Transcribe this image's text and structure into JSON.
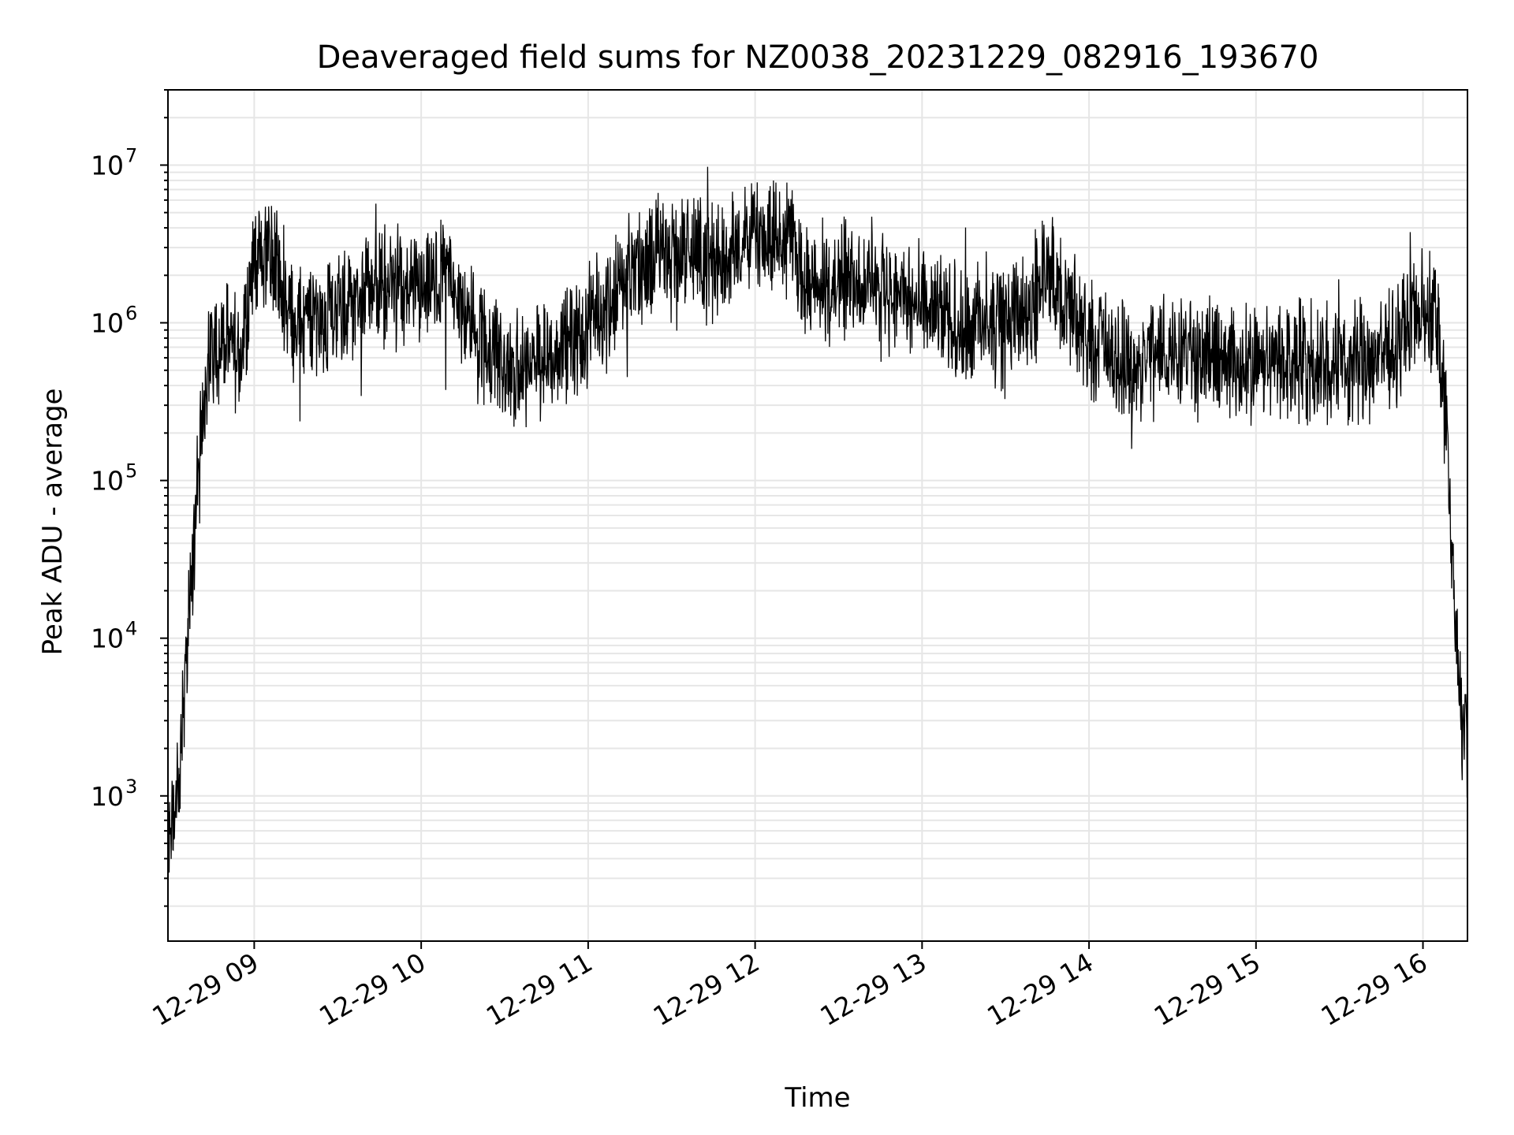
{
  "chart_data": {
    "type": "line",
    "title": "Deaveraged field sums for NZ0038_20231229_082916_193670",
    "xlabel": "Time",
    "ylabel": "Peak ADU - average",
    "yscale": "log",
    "ylim": [
      120,
      30000000
    ],
    "xlim": [
      "2023-12-29 08:29",
      "2023-12-29 16:16"
    ],
    "grid": true,
    "line_color": "#000000",
    "grid_color": "#e6e6e6",
    "x_ticks": [
      "12-29 09",
      "12-29 10",
      "12-29 11",
      "12-29 12",
      "12-29 13",
      "12-29 14",
      "12-29 15",
      "12-29 16"
    ],
    "y_ticks": [
      {
        "base": "10",
        "exp": "3"
      },
      {
        "base": "10",
        "exp": "4"
      },
      {
        "base": "10",
        "exp": "5"
      },
      {
        "base": "10",
        "exp": "6"
      },
      {
        "base": "10",
        "exp": "7"
      }
    ],
    "series": [
      {
        "x": [
          "2023-12-29 08:29",
          "2023-12-29 08:31",
          "2023-12-29 08:33",
          "2023-12-29 08:35",
          "2023-12-29 08:37",
          "2023-12-29 08:39",
          "2023-12-29 08:41",
          "2023-12-29 08:43",
          "2023-12-29 08:45",
          "2023-12-29 08:50",
          "2023-12-29 08:55",
          "2023-12-29 09:00",
          "2023-12-29 09:05",
          "2023-12-29 09:15",
          "2023-12-29 09:30",
          "2023-12-29 09:45",
          "2023-12-29 10:00",
          "2023-12-29 10:10",
          "2023-12-29 10:20",
          "2023-12-29 10:30",
          "2023-12-29 10:45",
          "2023-12-29 11:00",
          "2023-12-29 11:15",
          "2023-12-29 11:30",
          "2023-12-29 11:45",
          "2023-12-29 12:00",
          "2023-12-29 12:10",
          "2023-12-29 12:20",
          "2023-12-29 12:30",
          "2023-12-29 12:45",
          "2023-12-29 13:00",
          "2023-12-29 13:15",
          "2023-12-29 13:30",
          "2023-12-29 13:45",
          "2023-12-29 14:00",
          "2023-12-29 14:15",
          "2023-12-29 14:30",
          "2023-12-29 14:45",
          "2023-12-29 15:00",
          "2023-12-29 15:15",
          "2023-12-29 15:30",
          "2023-12-29 15:45",
          "2023-12-29 16:00",
          "2023-12-29 16:05",
          "2023-12-29 16:08",
          "2023-12-29 16:11",
          "2023-12-29 16:14",
          "2023-12-29 16:16"
        ],
        "values": [
          400,
          700,
          1200,
          5000,
          15000,
          60000,
          200000,
          500000,
          700000,
          700000,
          600000,
          2500000,
          3000000,
          1000000,
          1200000,
          1800000,
          1500000,
          2000000,
          800000,
          500000,
          600000,
          900000,
          2000000,
          3000000,
          2500000,
          3500000,
          4000000,
          1500000,
          2000000,
          1800000,
          1200000,
          1000000,
          900000,
          2000000,
          800000,
          500000,
          700000,
          600000,
          500000,
          600000,
          550000,
          600000,
          1200000,
          1000000,
          300000,
          20000,
          3000,
          2500
        ]
      }
    ]
  }
}
